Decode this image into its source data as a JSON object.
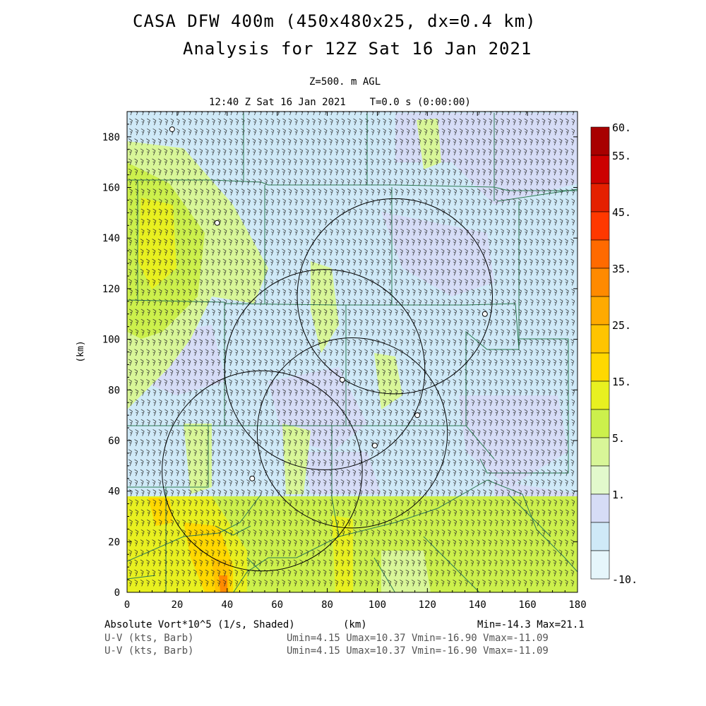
{
  "title_line1": "CASA DFW 400m (450x480x25, dx=0.4 km)",
  "title_line2": "Analysis for 12Z Sat 16 Jan 2021",
  "level_label": "Z=500. m AGL",
  "time_label": "12:40 Z Sat 16 Jan 2021    T=0.0 s (0:00:00)",
  "footer": {
    "field_label": "Absolute Vort*10^5 (1/s, Shaded)",
    "x_unit": "(km)",
    "minmax": "Min=-14.3 Max=21.1",
    "barb_label_1": "U-V (kts, Barb)",
    "barb_label_2": "U-V (kts, Barb)",
    "barb_range_1": "Umin=4.15 Umax=10.37 Vmin=-16.90 Vmax=-11.09",
    "barb_range_2": "Umin=4.15 Umax=10.37 Vmin=-16.90 Vmax=-11.09"
  },
  "chart_data": {
    "type": "heatmap",
    "title": "CASA DFW 400m (450x480x25, dx=0.4 km)",
    "xlabel": "(km)",
    "ylabel": "(km)",
    "xlim": [
      0,
      180
    ],
    "ylim": [
      0,
      190
    ],
    "x_ticks": [
      0,
      20,
      40,
      60,
      80,
      100,
      120,
      140,
      160,
      180
    ],
    "y_ticks": [
      0,
      20,
      40,
      60,
      80,
      100,
      120,
      140,
      160,
      180
    ],
    "colorbar": {
      "labels": [
        "60.",
        "55.",
        "45.",
        "35.",
        "25.",
        "15.",
        "5.",
        "1.",
        "-10."
      ],
      "colors": [
        "#a80000",
        "#cc0000",
        "#e42000",
        "#ff3800",
        "#ff6a00",
        "#ff8a00",
        "#ffaa00",
        "#ffc400",
        "#ffd800",
        "#e8f020",
        "#ccf04c",
        "#d8f698",
        "#e2f9cc",
        "#d6dcf6",
        "#cfe9f7",
        "#e6f6fb"
      ]
    },
    "field_summary": {
      "min": -14.3,
      "max": 21.1
    },
    "radar_rings": [
      {
        "cx_km": 107,
        "cy_km": 117,
        "r_km": 39
      },
      {
        "cx_km": 79,
        "cy_km": 88,
        "r_km": 40
      },
      {
        "cx_km": 54,
        "cy_km": 48,
        "r_km": 40
      },
      {
        "cx_km": 90,
        "cy_km": 63,
        "r_km": 38
      }
    ],
    "radar_sites": [
      {
        "x_km": 18,
        "y_km": 183
      },
      {
        "x_km": 36,
        "y_km": 146
      },
      {
        "x_km": 143,
        "y_km": 110
      },
      {
        "x_km": 86,
        "y_km": 84
      },
      {
        "x_km": 116,
        "y_km": 70
      },
      {
        "x_km": 99,
        "y_km": 58
      },
      {
        "x_km": 50,
        "y_km": 45
      }
    ],
    "wind": {
      "u_range": [
        4.15,
        10.37
      ],
      "v_range": [
        -16.9,
        -11.09
      ],
      "units": "kts"
    }
  }
}
